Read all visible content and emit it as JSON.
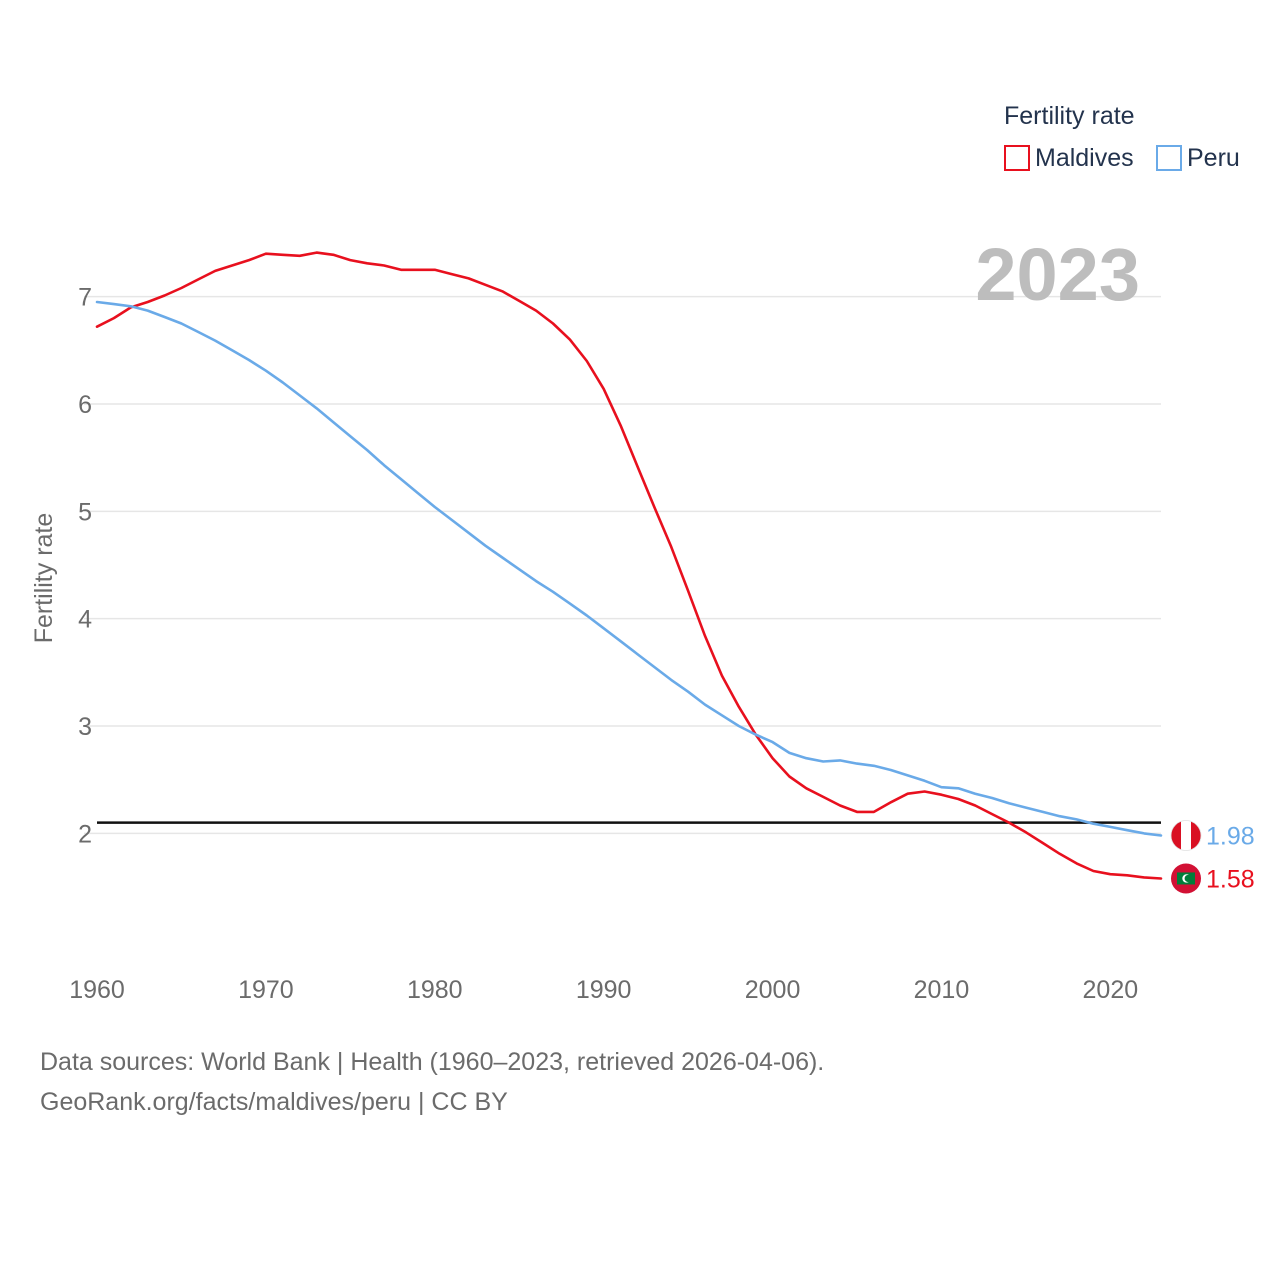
{
  "chart_data": {
    "type": "line",
    "title": "Fertility rate",
    "year_label": "2023",
    "xlabel": "",
    "ylabel": "Fertility rate",
    "xlim": [
      1960,
      2023
    ],
    "ylim": [
      1.1,
      7.9
    ],
    "x_ticks": [
      1960,
      1970,
      1980,
      1990,
      2000,
      2010,
      2020
    ],
    "y_ticks": [
      2,
      3,
      4,
      5,
      6,
      7
    ],
    "reference_line": {
      "value": 2.1
    },
    "legend": {
      "title": "Fertility rate",
      "position": "top-right"
    },
    "x": [
      1960,
      1961,
      1962,
      1963,
      1964,
      1965,
      1966,
      1967,
      1968,
      1969,
      1970,
      1971,
      1972,
      1973,
      1974,
      1975,
      1976,
      1977,
      1978,
      1979,
      1980,
      1981,
      1982,
      1983,
      1984,
      1985,
      1986,
      1987,
      1988,
      1989,
      1990,
      1991,
      1992,
      1993,
      1994,
      1995,
      1996,
      1997,
      1998,
      1999,
      2000,
      2001,
      2002,
      2003,
      2004,
      2005,
      2006,
      2007,
      2008,
      2009,
      2010,
      2011,
      2012,
      2013,
      2014,
      2015,
      2016,
      2017,
      2018,
      2019,
      2020,
      2021,
      2022,
      2023
    ],
    "series": [
      {
        "name": "Maldives",
        "color": "#e8101e",
        "end_label": "1.58",
        "flag_icon": "maldives-flag-icon",
        "values": [
          6.72,
          6.8,
          6.9,
          6.95,
          7.01,
          7.08,
          7.16,
          7.24,
          7.29,
          7.34,
          7.4,
          7.39,
          7.38,
          7.41,
          7.39,
          7.34,
          7.31,
          7.29,
          7.25,
          7.25,
          7.25,
          7.21,
          7.17,
          7.11,
          7.05,
          6.96,
          6.87,
          6.75,
          6.6,
          6.4,
          6.14,
          5.8,
          5.42,
          5.04,
          4.67,
          4.26,
          3.84,
          3.47,
          3.18,
          2.92,
          2.7,
          2.53,
          2.42,
          2.34,
          2.26,
          2.2,
          2.2,
          2.29,
          2.37,
          2.39,
          2.36,
          2.32,
          2.26,
          2.18,
          2.1,
          2.01,
          1.91,
          1.81,
          1.72,
          1.65,
          1.62,
          1.61,
          1.59,
          1.58
        ]
      },
      {
        "name": "Peru",
        "color": "#6aaae8",
        "end_label": "1.98",
        "flag_icon": "peru-flag-icon",
        "values": [
          6.95,
          6.93,
          6.91,
          6.87,
          6.81,
          6.75,
          6.67,
          6.59,
          6.5,
          6.41,
          6.31,
          6.2,
          6.08,
          5.96,
          5.83,
          5.7,
          5.57,
          5.43,
          5.3,
          5.17,
          5.04,
          4.92,
          4.8,
          4.68,
          4.57,
          4.46,
          4.35,
          4.25,
          4.14,
          4.03,
          3.91,
          3.79,
          3.67,
          3.55,
          3.43,
          3.32,
          3.2,
          3.1,
          3.0,
          2.92,
          2.85,
          2.75,
          2.7,
          2.67,
          2.68,
          2.65,
          2.63,
          2.59,
          2.54,
          2.49,
          2.43,
          2.42,
          2.37,
          2.33,
          2.28,
          2.24,
          2.2,
          2.16,
          2.13,
          2.09,
          2.06,
          2.03,
          2.0,
          1.98
        ]
      }
    ]
  },
  "source": {
    "line1": "Data sources: World Bank | Health (1960–2023, retrieved 2026-04-06).",
    "line2": "GeoRank.org/facts/maldives/peru | CC BY"
  }
}
